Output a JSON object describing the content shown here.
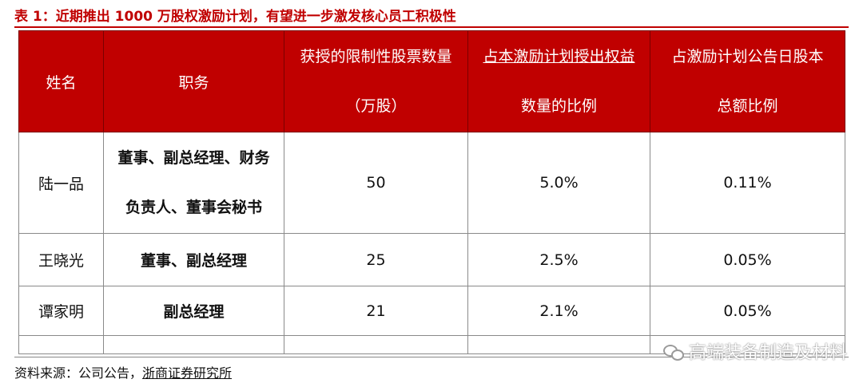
{
  "title": "表 1：近期推出 1000 万股权激励计划，有望进一步激发核心员工积极性",
  "table": {
    "headers": {
      "name": "姓名",
      "position": "职务",
      "shares_line1": "获授的限制性股票数量",
      "shares_line2": "（万股）",
      "ratio_plan_line1": "占本激励计划授出权益",
      "ratio_plan_line2": "数量的比例",
      "ratio_total_line1": "占激励计划公告日股本",
      "ratio_total_line2": "总额比例"
    },
    "rows": [
      {
        "name": "陆一品",
        "position_line1": "董事、副总经理、财务",
        "position_line2": "负责人、董事会秘书",
        "shares": "50",
        "ratio_plan": "5.0%",
        "ratio_total": "0.11%"
      },
      {
        "name": "王晓光",
        "position": "董事、副总经理",
        "shares": "25",
        "ratio_plan": "2.5%",
        "ratio_total": "0.05%"
      },
      {
        "name": "谭家明",
        "position": "副总经理",
        "shares": "21",
        "ratio_plan": "2.1%",
        "ratio_total": "0.05%"
      }
    ]
  },
  "source": {
    "prefix": "资料来源：公司公告，",
    "firm": "浙商证券研究所"
  },
  "watermark": {
    "icon": "wechat-icon",
    "text": "高端装备制造及材料"
  },
  "colors": {
    "accent": "#c00000"
  }
}
